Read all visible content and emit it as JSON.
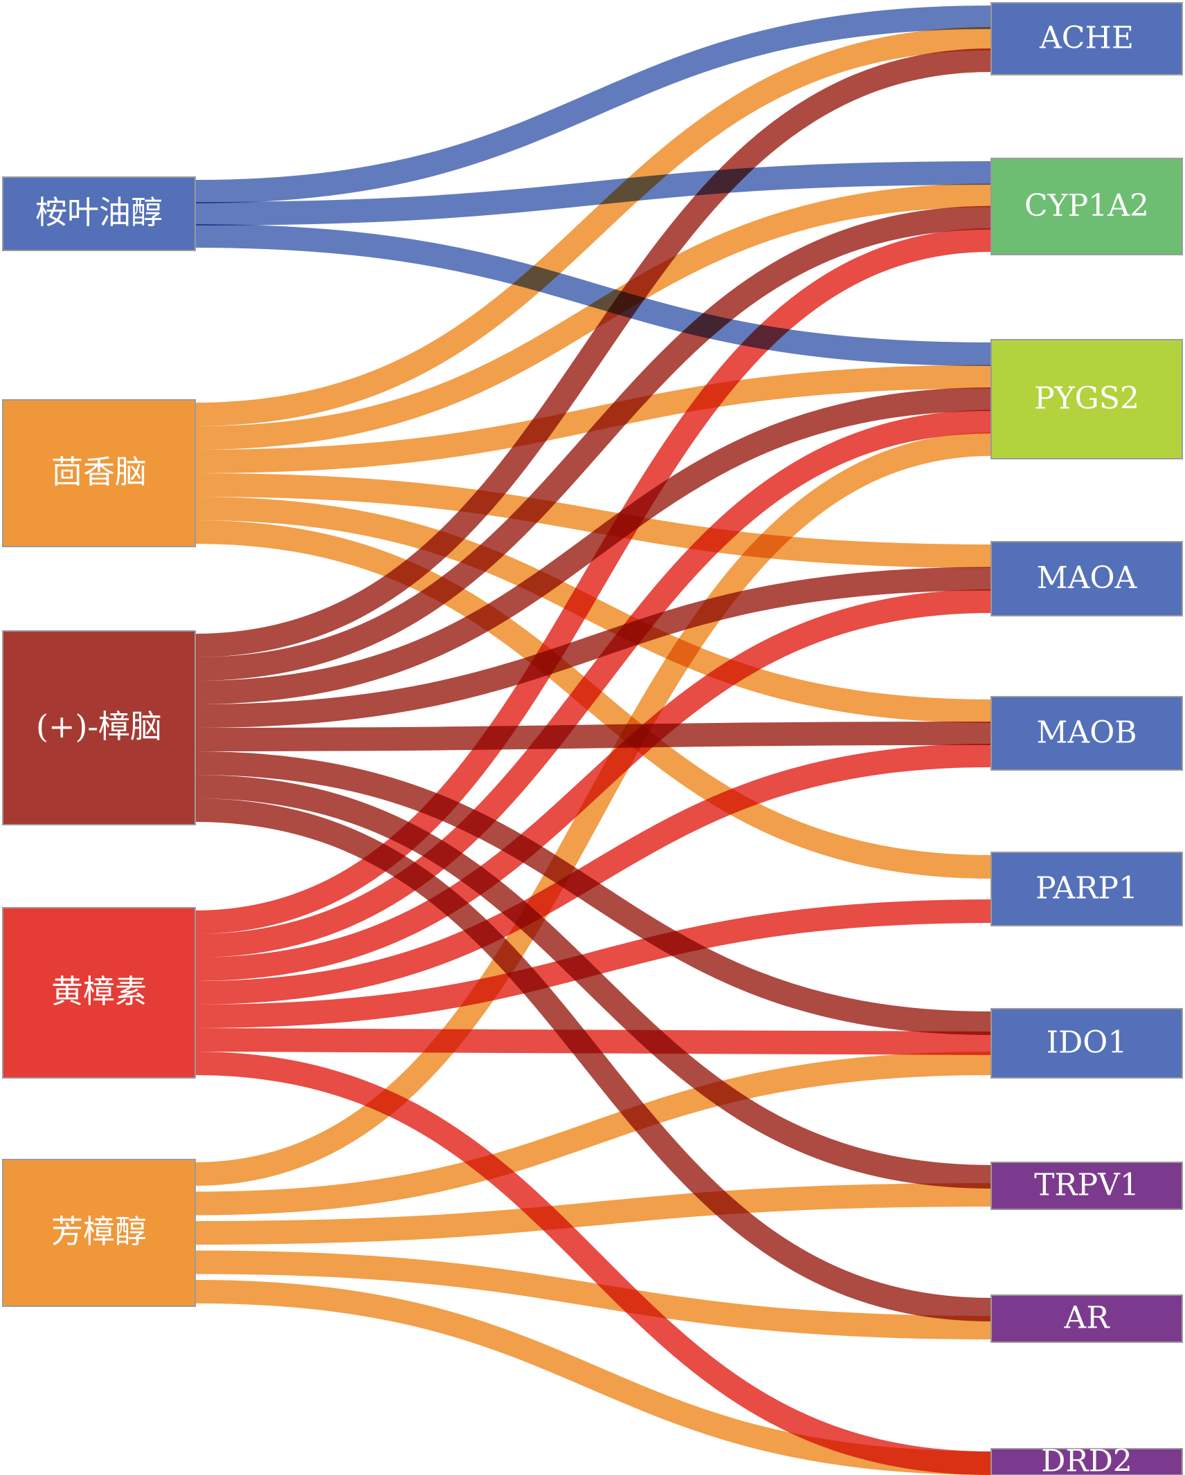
{
  "chart_data": {
    "type": "sankey",
    "sources": [
      {
        "id": "s1",
        "label": "桉叶油醇",
        "color": "#5470B8"
      },
      {
        "id": "s2",
        "label": "茴香脑",
        "color": "#F0973A"
      },
      {
        "id": "s3",
        "label": "(+)-樟脑",
        "color": "#A63A32"
      },
      {
        "id": "s4",
        "label": "黄樟素",
        "color": "#E53D35"
      },
      {
        "id": "s5",
        "label": "芳樟醇",
        "color": "#F0973A"
      }
    ],
    "targets": [
      {
        "id": "t1",
        "label": "ACHE",
        "color": "#5470B8"
      },
      {
        "id": "t2",
        "label": "CYP1A2",
        "color": "#6DBE72"
      },
      {
        "id": "t3",
        "label": "PYGS2",
        "color": "#B2D33E"
      },
      {
        "id": "t4",
        "label": "MAOA",
        "color": "#5470B8"
      },
      {
        "id": "t5",
        "label": "MAOB",
        "color": "#5470B8"
      },
      {
        "id": "t6",
        "label": "PARP1",
        "color": "#5470B8"
      },
      {
        "id": "t7",
        "label": "IDO1",
        "color": "#5470B8"
      },
      {
        "id": "t8",
        "label": "TRPV1",
        "color": "#7C3A8E"
      },
      {
        "id": "t9",
        "label": "AR",
        "color": "#7C3A8E"
      },
      {
        "id": "t10",
        "label": "DRD2",
        "color": "#7C3A8E"
      }
    ],
    "links": [
      {
        "source": "s1",
        "target": "t1",
        "value": 1
      },
      {
        "source": "s1",
        "target": "t2",
        "value": 1
      },
      {
        "source": "s1",
        "target": "t3",
        "value": 1
      },
      {
        "source": "s2",
        "target": "t1",
        "value": 1
      },
      {
        "source": "s2",
        "target": "t2",
        "value": 1
      },
      {
        "source": "s2",
        "target": "t3",
        "value": 1
      },
      {
        "source": "s2",
        "target": "t4",
        "value": 1
      },
      {
        "source": "s2",
        "target": "t5",
        "value": 1
      },
      {
        "source": "s2",
        "target": "t6",
        "value": 1
      },
      {
        "source": "s3",
        "target": "t1",
        "value": 1
      },
      {
        "source": "s3",
        "target": "t2",
        "value": 1
      },
      {
        "source": "s3",
        "target": "t3",
        "value": 1
      },
      {
        "source": "s3",
        "target": "t4",
        "value": 1
      },
      {
        "source": "s3",
        "target": "t5",
        "value": 1
      },
      {
        "source": "s3",
        "target": "t7",
        "value": 1
      },
      {
        "source": "s3",
        "target": "t8",
        "value": 1
      },
      {
        "source": "s3",
        "target": "t9",
        "value": 1
      },
      {
        "source": "s4",
        "target": "t2",
        "value": 1
      },
      {
        "source": "s4",
        "target": "t3",
        "value": 1
      },
      {
        "source": "s4",
        "target": "t4",
        "value": 1
      },
      {
        "source": "s4",
        "target": "t5",
        "value": 1
      },
      {
        "source": "s4",
        "target": "t6",
        "value": 1
      },
      {
        "source": "s4",
        "target": "t7",
        "value": 1
      },
      {
        "source": "s4",
        "target": "t10",
        "value": 1
      },
      {
        "source": "s5",
        "target": "t3",
        "value": 1
      },
      {
        "source": "s5",
        "target": "t7",
        "value": 1
      },
      {
        "source": "s5",
        "target": "t8",
        "value": 1
      },
      {
        "source": "s5",
        "target": "t9",
        "value": 1
      },
      {
        "source": "s5",
        "target": "t10",
        "value": 1
      }
    ]
  }
}
